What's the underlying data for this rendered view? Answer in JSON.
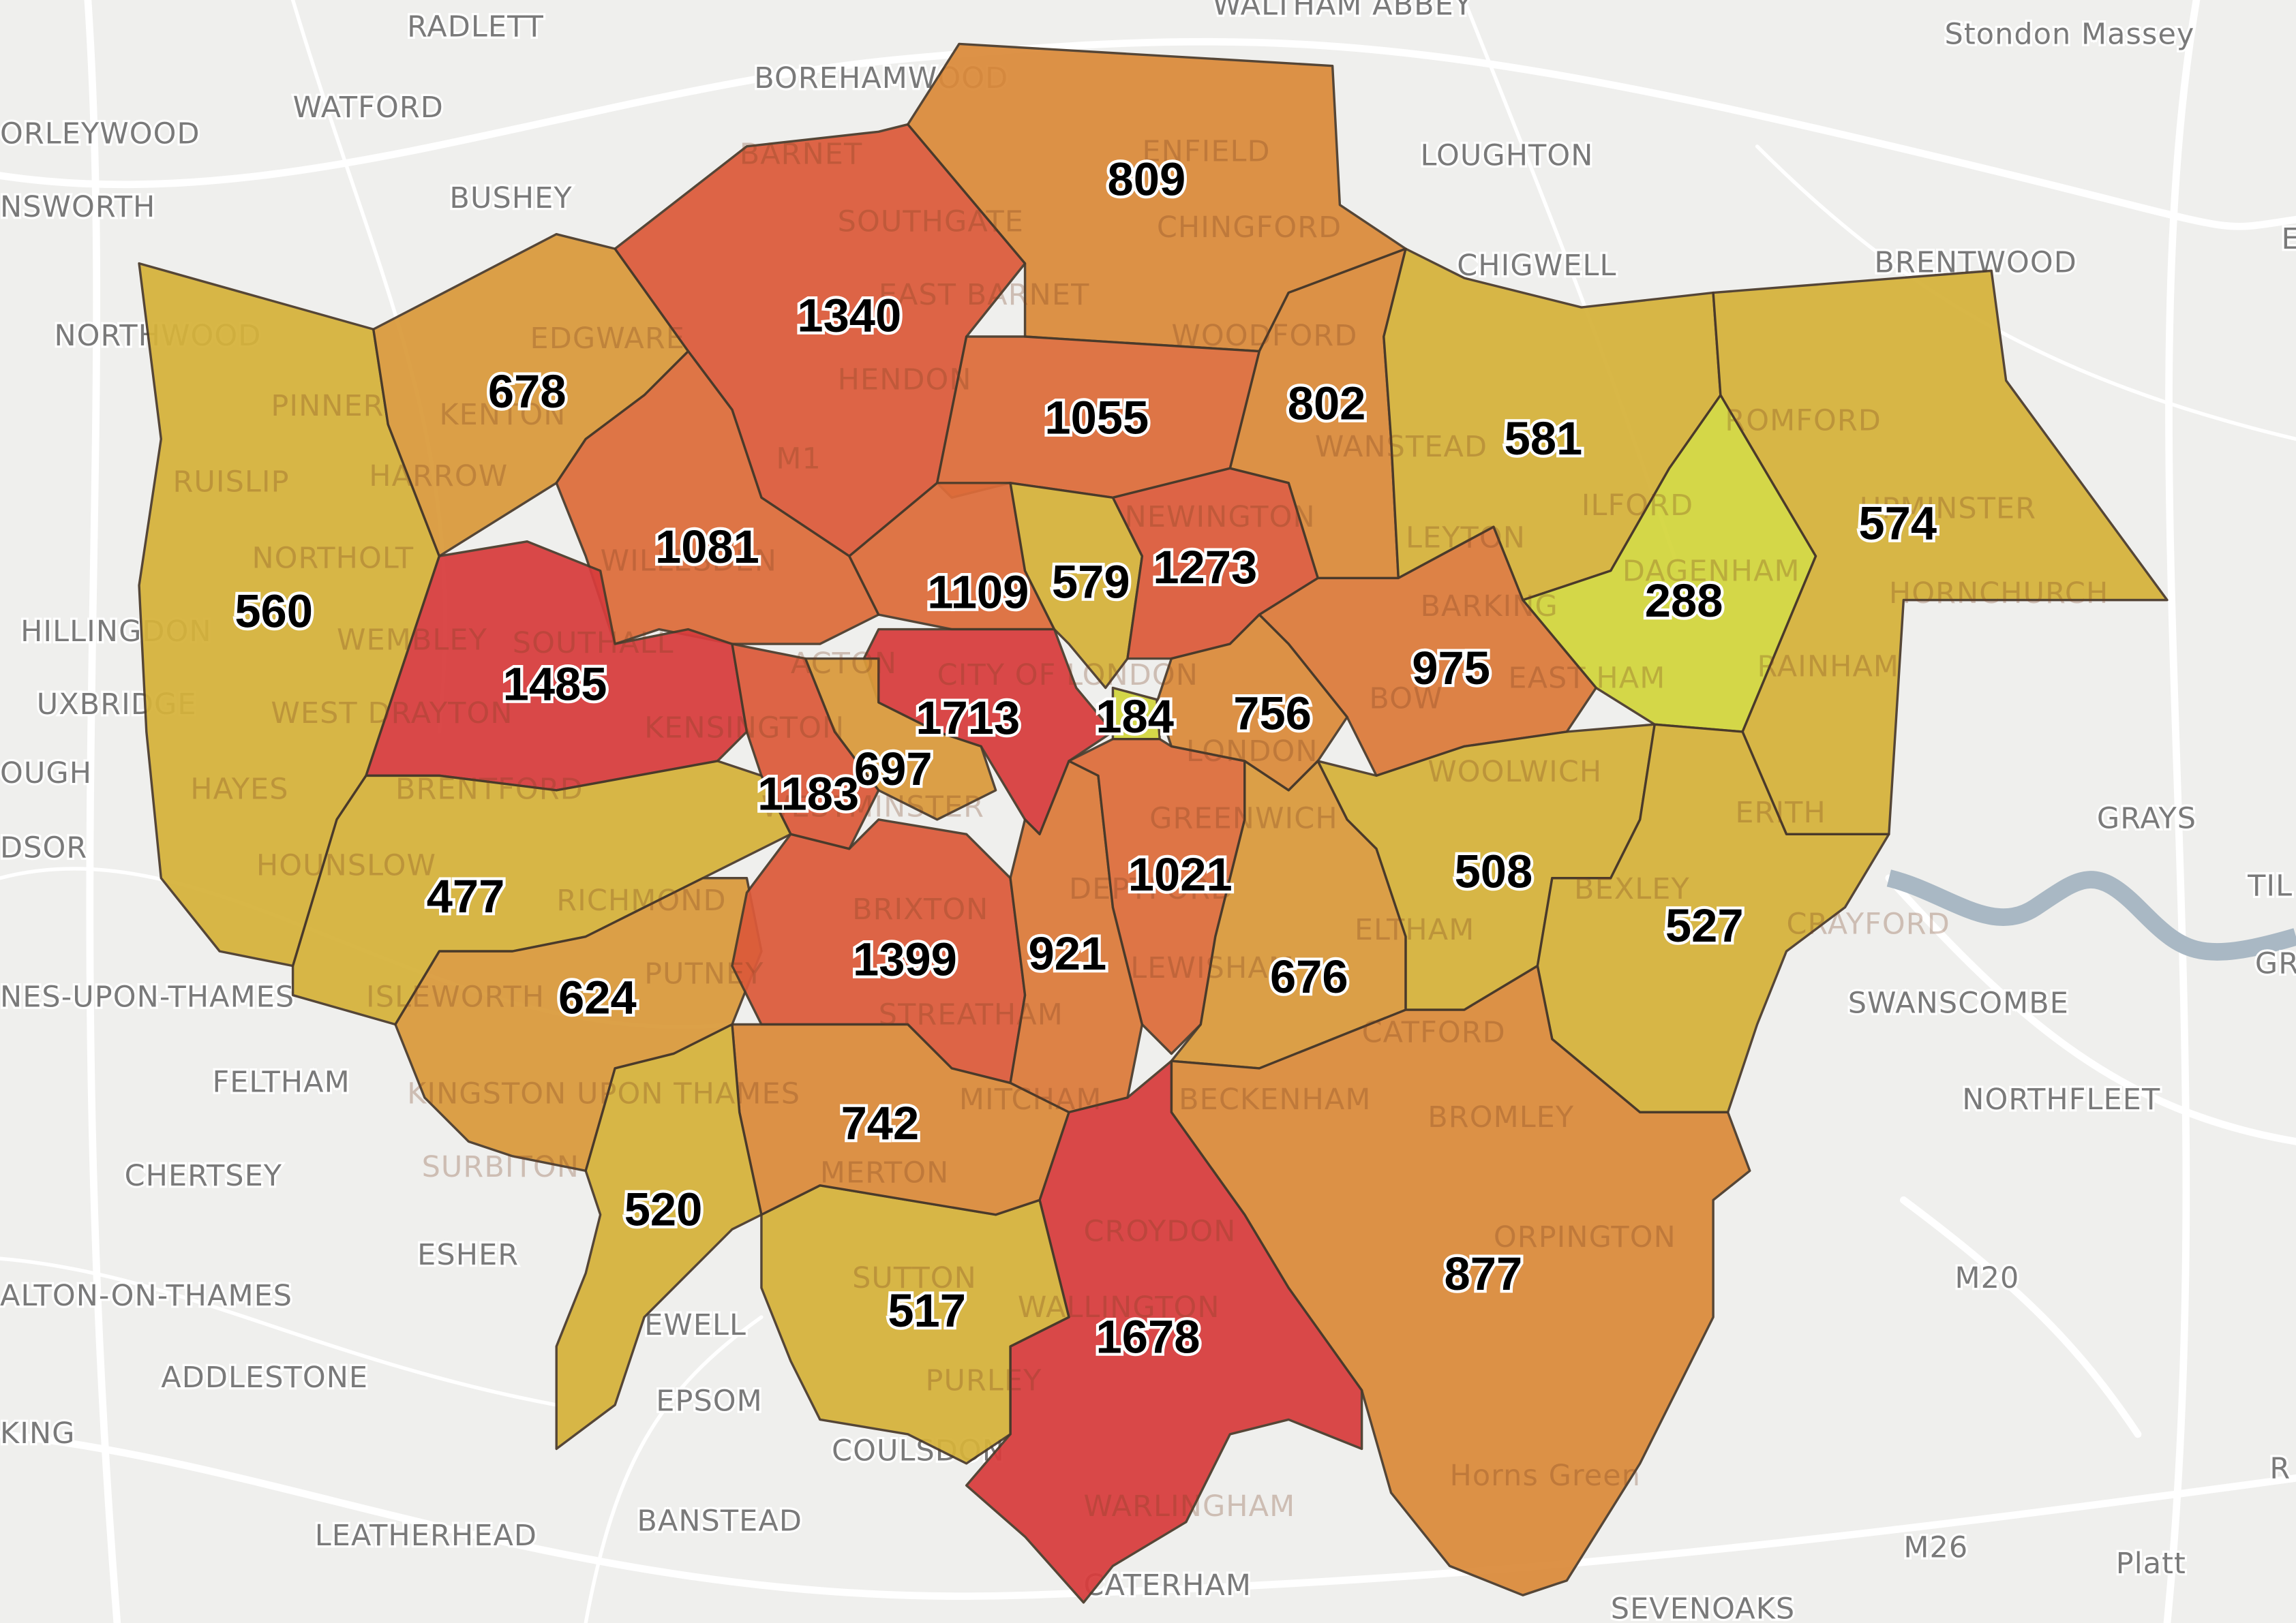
{
  "map": {
    "background_color": "#efefed",
    "river_color": "#a9b8c4",
    "color_scale": [
      {
        "min": 0,
        "color": "#d3d63c"
      },
      {
        "min": 400,
        "color": "#d6b23a"
      },
      {
        "min": 600,
        "color": "#da9a3b"
      },
      {
        "min": 740,
        "color": "#db8a3a"
      },
      {
        "min": 900,
        "color": "#dc7a3a"
      },
      {
        "min": 1000,
        "color": "#dd6c3a"
      },
      {
        "min": 1150,
        "color": "#dc5a3a"
      },
      {
        "min": 1450,
        "color": "#d83c3c"
      }
    ],
    "borough_values": [
      "560",
      "678",
      "1340",
      "809",
      "802",
      "1055",
      "581",
      "574",
      "288",
      "1081",
      "1485",
      "1109",
      "579",
      "1273",
      "975",
      "756",
      "184",
      "1713",
      "697",
      "1183",
      "477",
      "624",
      "1399",
      "921",
      "1021",
      "676",
      "508",
      "527",
      "877",
      "1678",
      "517",
      "742",
      "520"
    ],
    "place_labels": [
      "RADLETT",
      "WALTHAM ABBEY",
      "Stondon Massey",
      "BOREHAMWOOD",
      "WATFORD",
      "ORLEYWOOD",
      "BARNET",
      "ENFIELD",
      "LOUGHTON",
      "NSWORTH",
      "BUSHEY",
      "SOUTHGATE",
      "CHINGFORD",
      "CHIGWELL",
      "BRENTWOOD",
      "NORTHWOOD",
      "EDGWARE",
      "EAST BARNET",
      "WOODFORD",
      "HENDON",
      "PINNER",
      "KENTON",
      "ROMFORD",
      "RUISLIP",
      "HARROW",
      "WANSTEAD",
      "ILFORD",
      "UPMINSTER",
      "NORTHOLT",
      "WILLESDEN",
      "NEWINGTON",
      "LEYTON",
      "DAGENHAM",
      "HORNCHURCH",
      "HILLINGDON",
      "WEMBLEY",
      "SOUTHALL",
      "BARKING",
      "ACTON",
      "CITY OF LONDON",
      "EAST HAM",
      "RAINHAM",
      "UXBRIDGE",
      "WEST DRAYTON",
      "KENSINGTON",
      "BOW",
      "LONDON",
      "OUGH",
      "HAYES",
      "BRENTFORD",
      "WESTMINSTER",
      "WOOLWICH",
      "GREENWICH",
      "ERITH",
      "GRAYS",
      "DSOR",
      "HOUNSLOW",
      "RICHMOND",
      "BRIXTON",
      "DEPTFORD",
      "ELTHAM",
      "BEXLEY",
      "CRAYFORD",
      "TIL",
      "NES-UPON-THAMES",
      "ISLEWORTH",
      "PUTNEY",
      "STREATHAM",
      "LEWISHAM",
      "CATFORD",
      "SWANSCOMBE",
      "GR",
      "FELTHAM",
      "MITCHAM",
      "BECKENHAM",
      "KINGSTON UPON THAMES",
      "BROMLEY",
      "NORTHFLEET",
      "CHERTSEY",
      "SURBITON",
      "MERTON",
      "CROYDON",
      "ORPINGTON",
      "ESHER",
      "SUTTON",
      "ALTON-ON-THAMES",
      "WALLINGTON",
      "EWELL",
      "M20",
      "ADDLESTONE",
      "EPSOM",
      "PURLEY",
      "KING",
      "COULSDON",
      "Horns Green",
      "LEATHERHEAD",
      "BANSTEAD",
      "WARLINGHAM",
      "M26",
      "Platt",
      "CATERHAM",
      "SEVENOAKS",
      "M1",
      "R",
      "E"
    ]
  }
}
